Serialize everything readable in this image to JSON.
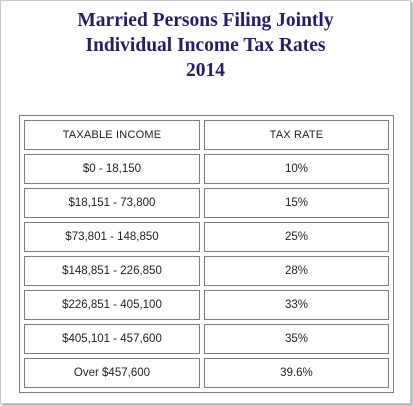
{
  "title": {
    "line1": "Married Persons Filing Jointly",
    "line2": "Individual Income Tax Rates",
    "line3": "2014"
  },
  "table": {
    "headers": {
      "income": "TAXABLE INCOME",
      "rate": "TAX RATE"
    },
    "rows": [
      {
        "income": "$0 - 18,150",
        "rate": "10%"
      },
      {
        "income": "$18,151 - 73,800",
        "rate": "15%"
      },
      {
        "income": "$73,801 - 148,850",
        "rate": "25%"
      },
      {
        "income": "$148,851 - 226,850",
        "rate": "28%"
      },
      {
        "income": "$226,851 - 405,100",
        "rate": "33%"
      },
      {
        "income": "$405,101 - 457,600",
        "rate": "35%"
      },
      {
        "income": "Over $457,600",
        "rate": "39.6%"
      }
    ]
  },
  "colors": {
    "title": "#1f1f6e",
    "border": "#7d7d7d"
  }
}
